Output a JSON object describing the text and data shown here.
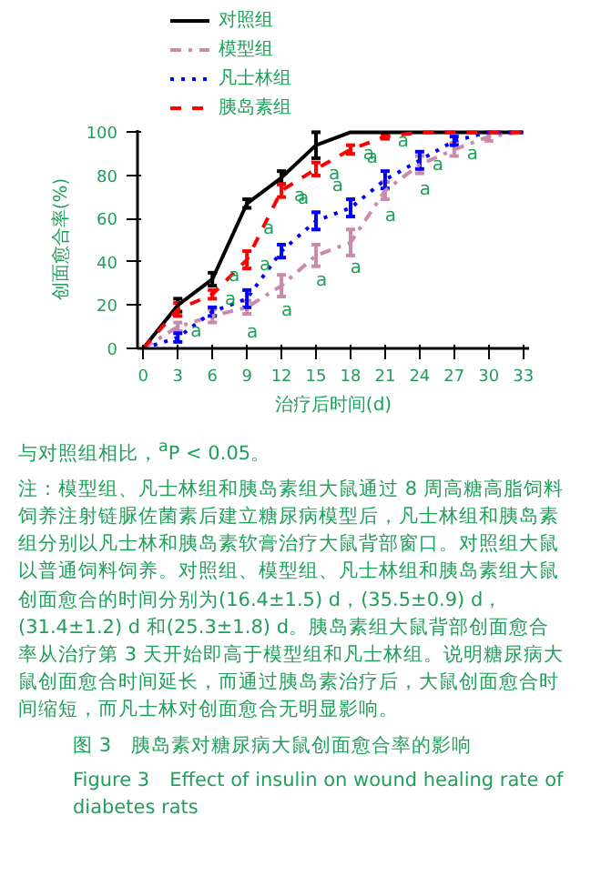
{
  "chart_data": {
    "type": "line",
    "xlabel": "治疗后时间(d)",
    "ylabel": "创面愈合率(%)",
    "x": [
      0,
      3,
      6,
      9,
      12,
      15,
      18,
      21,
      24,
      27,
      30,
      33
    ],
    "series": [
      {
        "name": "对照组",
        "color": "#000000",
        "line_style": "solid",
        "values": [
          0,
          20,
          32,
          67,
          79,
          94,
          100,
          100,
          100,
          100,
          100,
          100
        ],
        "errors": [
          null,
          3,
          3,
          2,
          3,
          6,
          null,
          null,
          null,
          null,
          null,
          null
        ]
      },
      {
        "name": "模型组",
        "color": "#c98aab",
        "line_style": "dashdot",
        "values": [
          0,
          10,
          15,
          19,
          29,
          43,
          49,
          73,
          85,
          92,
          98,
          100
        ],
        "errors": [
          null,
          2,
          3,
          3,
          5,
          5,
          6,
          4,
          4,
          3,
          2,
          null
        ]
      },
      {
        "name": "凡士林组",
        "color": "#0000ff",
        "line_style": "dotted",
        "values": [
          0,
          5,
          17,
          23,
          45,
          59,
          65,
          78,
          87,
          96,
          100,
          100
        ],
        "errors": [
          null,
          2,
          2,
          4,
          3,
          4,
          4,
          4,
          4,
          2,
          null,
          null
        ]
      },
      {
        "name": "胰岛素组",
        "color": "#ff0000",
        "line_style": "dashed",
        "values": [
          0,
          18,
          25,
          41,
          73,
          83,
          92,
          98,
          100,
          100,
          100,
          100
        ],
        "errors": [
          null,
          3,
          2,
          4,
          3,
          3,
          2,
          1,
          null,
          null,
          null,
          null
        ]
      }
    ],
    "xlim": [
      -0.5,
      33.5
    ],
    "ylim": [
      0,
      101
    ],
    "xticks": [
      0,
      3,
      6,
      9,
      12,
      15,
      18,
      21,
      24,
      27,
      30,
      33
    ],
    "yticks": [
      0,
      20,
      40,
      60,
      80,
      100
    ],
    "marker": "none",
    "grid": false,
    "legend": "top left",
    "annotations": [
      {
        "text": "a",
        "x": 3,
        "y": 10
      },
      {
        "text": "a",
        "x": 6,
        "y": 25
      },
      {
        "text": "a",
        "x": 9,
        "y": 41
      },
      {
        "text": "a",
        "x": 9,
        "y": 23
      },
      {
        "text": "a",
        "x": 9,
        "y": 19
      },
      {
        "text": "a",
        "x": 12,
        "y": 73
      },
      {
        "text": "a",
        "x": 12,
        "y": 45
      },
      {
        "text": "a",
        "x": 12,
        "y": 29
      },
      {
        "text": "a",
        "x": 15,
        "y": 83
      },
      {
        "text": "a",
        "x": 15,
        "y": 59
      },
      {
        "text": "a",
        "x": 15,
        "y": 43
      },
      {
        "text": "a",
        "x": 18,
        "y": 92
      },
      {
        "text": "a",
        "x": 18,
        "y": 65
      },
      {
        "text": "a",
        "x": 18,
        "y": 49
      },
      {
        "text": "a",
        "x": 21,
        "y": 98
      },
      {
        "text": "a",
        "x": 21,
        "y": 78
      },
      {
        "text": "a",
        "x": 21,
        "y": 73
      },
      {
        "text": "a",
        "x": 24,
        "y": 87
      },
      {
        "text": "a",
        "x": 24,
        "y": 85
      },
      {
        "text": "a",
        "x": 27,
        "y": 92
      },
      "与对照组相比，$^{a}$P < 0.05。",
      "注：模型组、凡士林组和胰岛素组大鼠通过 8 周高糖高脂饲料饲养注射链脲佐菌素后建立糖尿病模型后，凡士林组和胰岛素组分别以凡士林和胰岛素软膏治疗大鼠背部窗口。对照组大鼠以普通饲料饲养。对照组、模型组、凡士林组和胰岛素组大鼠创面愈合的时间分别为(16.4±1.5) d，(35.5±0.9) d，(31.4±1.2) d 和(25.3±1.8) d。胰岛素组大鼠背部创面愈合率从治疗第 3 天开始即高于模型组和凡士林组。说明糖尿病大鼠创面愈合时间延长，而通过胰岛素治疗后，大鼠创面愈合时间缩短，而凡士林对创面愈合无明显影响。",
      "图 3　胰岛素对糖尿病大鼠创面愈合率的影响",
      "Figure 3　Effect of insulin on wound healing rate of diabetes rats"
    ]
  }
}
